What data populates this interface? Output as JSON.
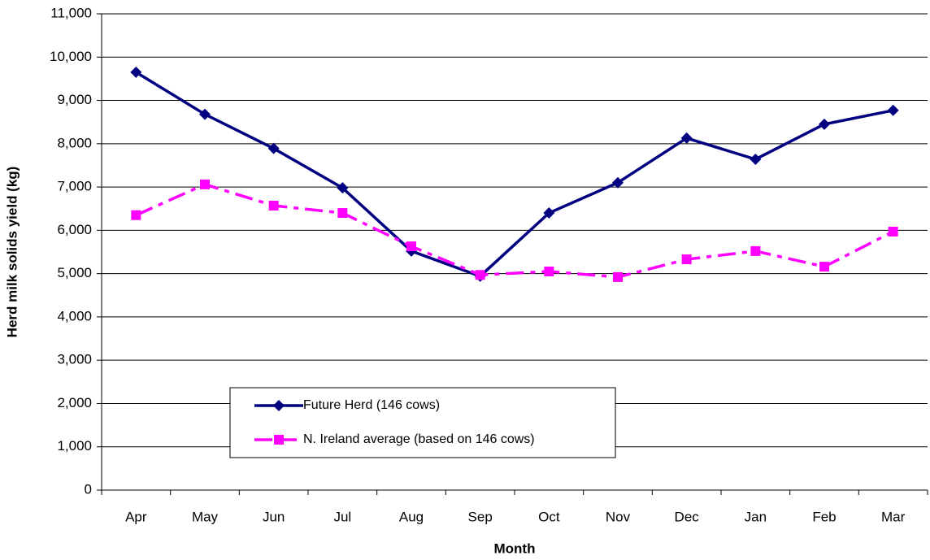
{
  "chart_data": {
    "type": "line",
    "x_label": "Month",
    "y_label": "Herd milk solids yield (kg)",
    "categories": [
      "Apr",
      "May",
      "Jun",
      "Jul",
      "Aug",
      "Sep",
      "Oct",
      "Nov",
      "Dec",
      "Jan",
      "Feb",
      "Mar"
    ],
    "series": [
      {
        "name": "Future Herd (146 cows)",
        "color": "#000080",
        "marker": "diamond",
        "dash": false,
        "values": [
          9650,
          8680,
          7890,
          6980,
          5520,
          4940,
          6400,
          7100,
          8130,
          7640,
          8450,
          8770
        ]
      },
      {
        "name": "N. Ireland average (based on 146 cows)",
        "color": "#ff00ff",
        "marker": "square",
        "dash": true,
        "values": [
          6350,
          7060,
          6570,
          6400,
          5630,
          4970,
          5050,
          4920,
          5330,
          5520,
          5160,
          5970
        ]
      }
    ],
    "ylim": [
      0,
      11000
    ],
    "yticks": [
      0,
      {
        "value": 1000,
        "label": "1,000"
      },
      {
        "value": 2000,
        "label": "2,000"
      },
      {
        "value": 3000,
        "label": "3,000"
      },
      {
        "value": 4000,
        "label": "4,000"
      },
      {
        "value": 5000,
        "label": "5,000"
      },
      {
        "value": 6000,
        "label": "6,000"
      },
      {
        "value": 7000,
        "label": "7,000"
      },
      {
        "value": 8000,
        "label": "8,000"
      },
      {
        "value": 9000,
        "label": "9,000"
      },
      {
        "value": 10000,
        "label": "10,000"
      },
      {
        "value": 11000,
        "label": "11,000"
      }
    ],
    "grid": true,
    "legend": "lower center"
  }
}
